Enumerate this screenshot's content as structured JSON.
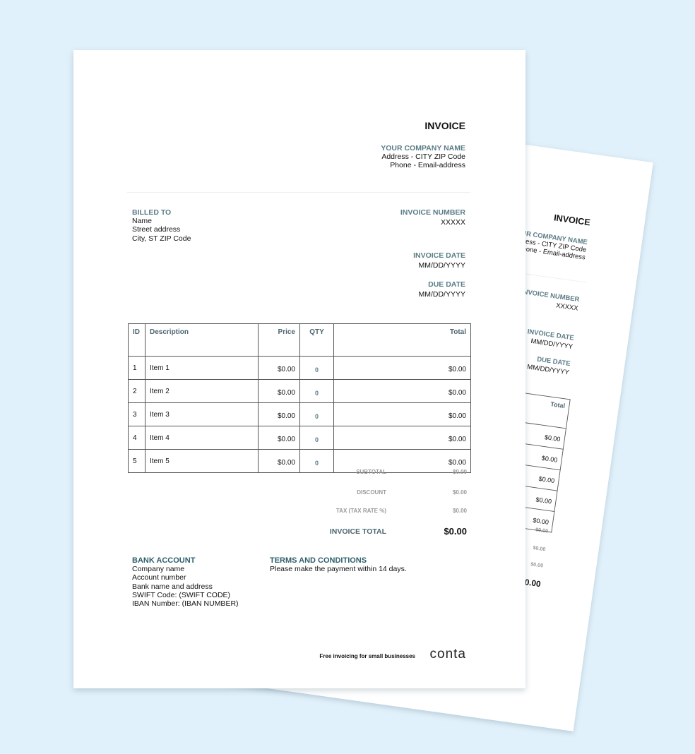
{
  "invoice": {
    "title": "INVOICE",
    "company": {
      "name": "YOUR COMPANY NAME",
      "address": "Address - CITY ZIP Code",
      "contact": "Phone - Email-address"
    },
    "billed_to": {
      "label": "BILLED TO",
      "lines": [
        "Name",
        "Street address",
        "City, ST ZIP Code"
      ]
    },
    "invoice_number": {
      "label": "INVOICE NUMBER",
      "value": "XXXXX"
    },
    "invoice_date": {
      "label": "INVOICE DATE",
      "value": "MM/DD/YYYY"
    },
    "due_date": {
      "label": "DUE DATE",
      "value": "MM/DD/YYYY"
    },
    "table": {
      "headers": [
        "ID",
        "Description",
        "Price",
        "QTY",
        "Total"
      ],
      "rows": [
        [
          "1",
          "Item 1",
          "$0.00",
          "0",
          "$0.00"
        ],
        [
          "2",
          "Item 2",
          "$0.00",
          "0",
          "$0.00"
        ],
        [
          "3",
          "Item 3",
          "$0.00",
          "0",
          "$0.00"
        ],
        [
          "4",
          "Item 4",
          "$0.00",
          "0",
          "$0.00"
        ],
        [
          "5",
          "Item 5",
          "$0.00",
          "0",
          "$0.00"
        ]
      ]
    },
    "totals": {
      "subtotal": {
        "label": "SUBTOTAL",
        "value": "$0.00"
      },
      "discount": {
        "label": "DISCOUNT",
        "value": "$0.00"
      },
      "tax": {
        "label": "TAX (TAX RATE %)",
        "value": "$0.00"
      },
      "total": {
        "label": "INVOICE TOTAL",
        "value": "$0.00"
      }
    },
    "bank": {
      "label": "BANK ACCOUNT",
      "lines": [
        "Company name",
        "Account number",
        "Bank name and address",
        "SWIFT Code: (SWIFT CODE)",
        "IBAN Number: (IBAN NUMBER)"
      ]
    },
    "terms": {
      "label": "TERMS AND CONDITIONS",
      "text": "Please make the payment within 14 days."
    },
    "footer": {
      "tagline": "Free invoicing for small businesses",
      "logo": "conta"
    }
  },
  "colors": {
    "background": "#e1f1fb",
    "accent": "#5b7c86",
    "accent_dark": "#2f5f6b"
  }
}
